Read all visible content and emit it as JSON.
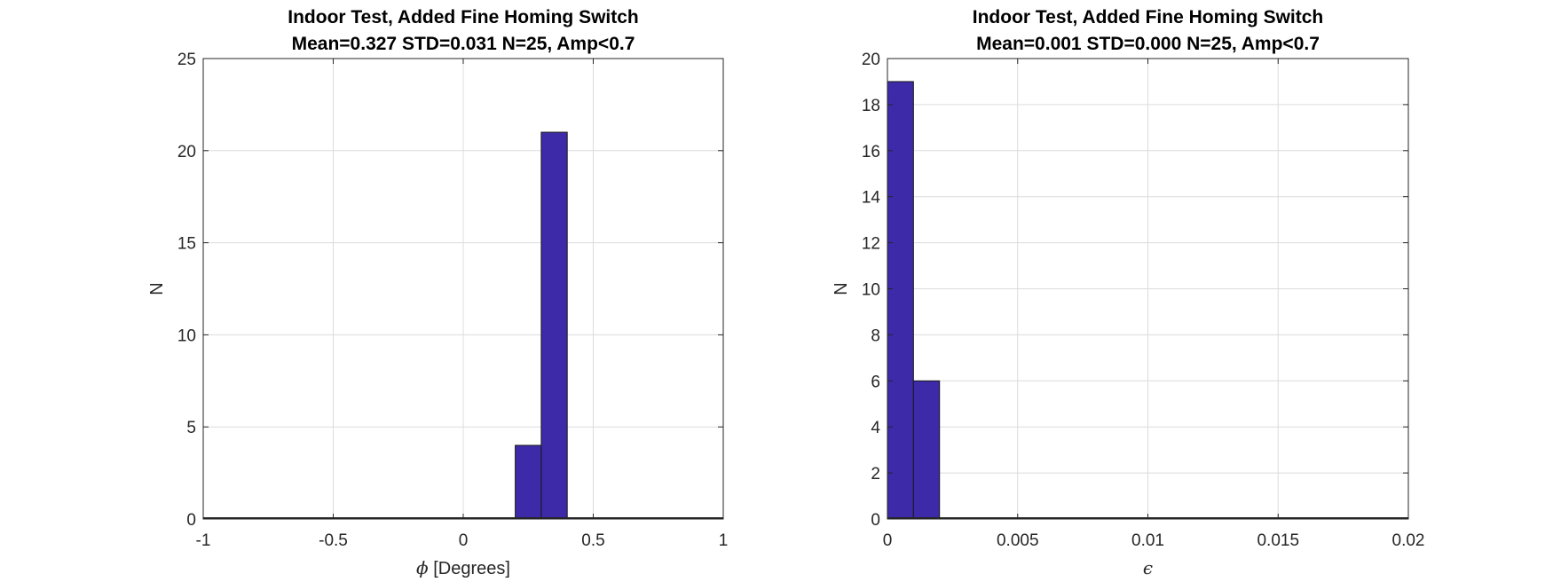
{
  "chart_data": [
    {
      "type": "bar",
      "title": "Indoor Test, Added Fine Homing Switch",
      "subtitle": "Mean=0.327 STD=0.031 N=25, Amp<0.7",
      "xlabel_symbol": "ϕ",
      "xlabel": " [Degrees]",
      "ylabel": "N",
      "xlim": [
        -1,
        1
      ],
      "ylim": [
        0,
        25
      ],
      "xticks": [
        -1,
        -0.5,
        0,
        0.5,
        1
      ],
      "xtick_labels": [
        "-1",
        "-0.5",
        "0",
        "0.5",
        "1"
      ],
      "yticks": [
        0,
        5,
        10,
        15,
        20,
        25
      ],
      "ytick_labels": [
        "0",
        "5",
        "10",
        "15",
        "20",
        "25"
      ],
      "bin_edges": [
        0.2,
        0.3,
        0.4
      ],
      "values": [
        4,
        21
      ],
      "color": "#3c2aa8",
      "grid": true
    },
    {
      "type": "bar",
      "title": "Indoor Test, Added Fine Homing Switch",
      "subtitle": "Mean=0.001 STD=0.000 N=25, Amp<0.7",
      "xlabel_symbol": "ϵ",
      "xlabel": "",
      "ylabel": "N",
      "xlim": [
        0,
        0.02
      ],
      "ylim": [
        0,
        20
      ],
      "xticks": [
        0,
        0.005,
        0.01,
        0.015,
        0.02
      ],
      "xtick_labels": [
        "0",
        "0.005",
        "0.01",
        "0.015",
        "0.02"
      ],
      "yticks": [
        0,
        2,
        4,
        6,
        8,
        10,
        12,
        14,
        16,
        18,
        20
      ],
      "ytick_labels": [
        "0",
        "2",
        "4",
        "6",
        "8",
        "10",
        "12",
        "14",
        "16",
        "18",
        "20"
      ],
      "bin_edges": [
        0,
        0.001,
        0.002
      ],
      "values": [
        19,
        6
      ],
      "color": "#3c2aa8",
      "grid": true
    }
  ]
}
